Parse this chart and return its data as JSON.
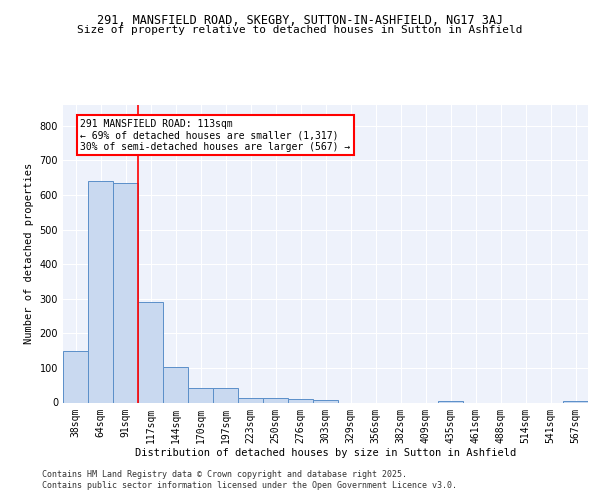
{
  "title1": "291, MANSFIELD ROAD, SKEGBY, SUTTON-IN-ASHFIELD, NG17 3AJ",
  "title2": "Size of property relative to detached houses in Sutton in Ashfield",
  "xlabel": "Distribution of detached houses by size in Sutton in Ashfield",
  "ylabel": "Number of detached properties",
  "categories": [
    "38sqm",
    "64sqm",
    "91sqm",
    "117sqm",
    "144sqm",
    "170sqm",
    "197sqm",
    "223sqm",
    "250sqm",
    "276sqm",
    "303sqm",
    "329sqm",
    "356sqm",
    "382sqm",
    "409sqm",
    "435sqm",
    "461sqm",
    "488sqm",
    "514sqm",
    "541sqm",
    "567sqm"
  ],
  "values": [
    150,
    640,
    635,
    290,
    103,
    43,
    43,
    12,
    12,
    10,
    8,
    0,
    0,
    0,
    0,
    4,
    0,
    0,
    0,
    0,
    4
  ],
  "bar_color": "#c9d9f0",
  "bar_edge_color": "#5b8fc9",
  "red_line_x": 2.5,
  "annotation_text": "291 MANSFIELD ROAD: 113sqm\n← 69% of detached houses are smaller (1,317)\n30% of semi-detached houses are larger (567) →",
  "annotation_box_color": "white",
  "annotation_box_edge": "red",
  "footer1": "Contains HM Land Registry data © Crown copyright and database right 2025.",
  "footer2": "Contains public sector information licensed under the Open Government Licence v3.0.",
  "ylim": [
    0,
    860
  ],
  "yticks": [
    0,
    100,
    200,
    300,
    400,
    500,
    600,
    700,
    800
  ],
  "background_color": "#eef2fb",
  "grid_color": "white",
  "title1_fontsize": 8.5,
  "title2_fontsize": 8.0,
  "axis_label_fontsize": 7.5,
  "tick_fontsize": 7,
  "footer_fontsize": 6.0
}
